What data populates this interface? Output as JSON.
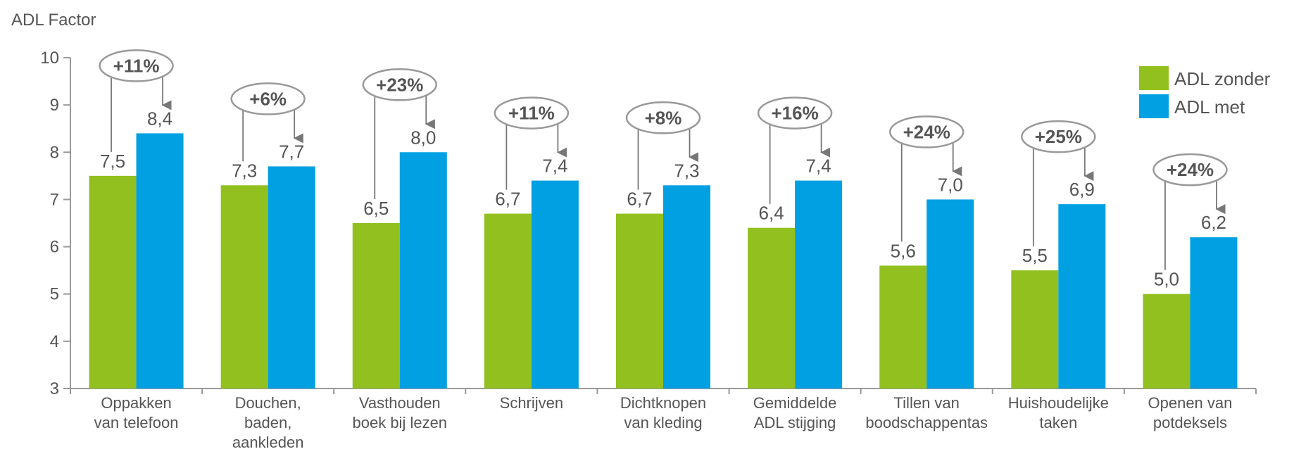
{
  "chart_data": {
    "type": "bar",
    "ylabel": "ADL Factor",
    "ylim": [
      3,
      10
    ],
    "yticks": [
      3,
      4,
      5,
      6,
      7,
      8,
      9,
      10
    ],
    "legend_position": "top-right",
    "categories": [
      [
        "Oppakken",
        "van telefoon"
      ],
      [
        "Douchen,",
        "baden,",
        "aankleden"
      ],
      [
        "Vasthouden",
        "boek bij lezen"
      ],
      [
        "Schrijven"
      ],
      [
        "Dichtknopen",
        "van kleding"
      ],
      [
        "Gemiddelde",
        "ADL stijging"
      ],
      [
        "Tillen van",
        "boodschappentas"
      ],
      [
        "Huishoudelijke",
        "taken"
      ],
      [
        "Openen van",
        "potdeksels"
      ]
    ],
    "series": [
      {
        "name": "ADL zonder",
        "color": "#92c01f",
        "values": [
          7.5,
          7.3,
          6.5,
          6.7,
          6.7,
          6.4,
          5.6,
          5.5,
          5.0
        ],
        "labels": [
          "7,5",
          "7,3",
          "6,5",
          "6,7",
          "6,7",
          "6,4",
          "5,6",
          "5,5",
          "5,0"
        ]
      },
      {
        "name": "ADL met",
        "color": "#00a0e3",
        "values": [
          8.4,
          7.7,
          8.0,
          7.4,
          7.3,
          7.4,
          7.0,
          6.9,
          6.2
        ],
        "labels": [
          "8,4",
          "7,7",
          "8,0",
          "7,4",
          "7,3",
          "7,4",
          "7,0",
          "6,9",
          "6,2"
        ]
      }
    ],
    "annotations": [
      "+11%",
      "+6%",
      "+23%",
      "+11%",
      "+8%",
      "+16%",
      "+24%",
      "+25%",
      "+24%"
    ]
  }
}
